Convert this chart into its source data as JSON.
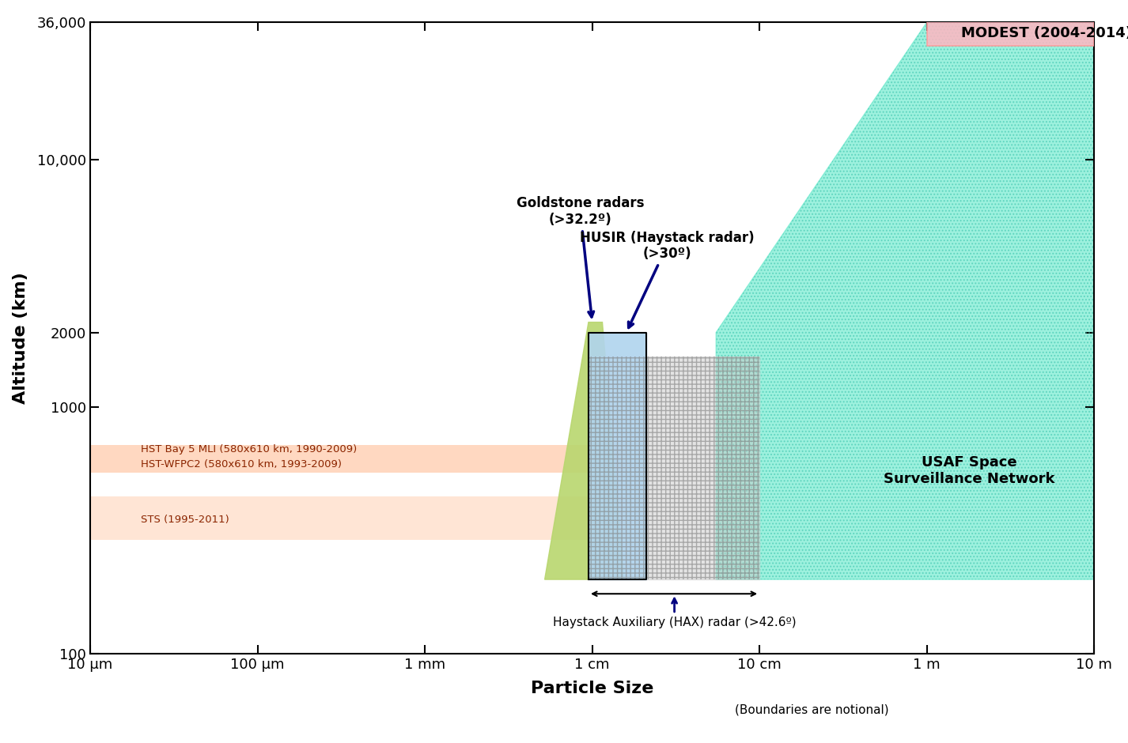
{
  "xlabel": "Particle Size",
  "ylabel": "Altitude (km)",
  "x_ticks_labels": [
    "10 μm",
    "100 μm",
    "1 mm",
    "1 cm",
    "10 cm",
    "1 m",
    "10 m"
  ],
  "x_ticks_pos": [
    1e-05,
    0.0001,
    0.001,
    0.01,
    0.1,
    1.0,
    10.0
  ],
  "y_ticks_labels": [
    "100",
    "1000",
    "2000",
    "10,000",
    "36,000"
  ],
  "y_ticks_pos": [
    100,
    1000,
    2000,
    10000,
    36000
  ],
  "xlim": [
    1e-05,
    10.0
  ],
  "ylim": [
    100,
    36000
  ],
  "modest_color": "#FFB6C1",
  "modest_text": "MODEST (2004-2014)",
  "usaf_color": "#5CE8C8",
  "usaf_alpha": 0.6,
  "usaf_text": "USAF Space\nSurveillance Network",
  "goldstone_color": "#B8D66E",
  "goldstone_alpha": 0.9,
  "husir_color": "#B0D4EE",
  "husir_alpha": 0.9,
  "hax_color": "#C8C8C8",
  "hax_alpha": 0.5,
  "hst_color": "#FFAA77",
  "hst_alpha": 0.45,
  "hst_text1": "HST Bay 5 MLI (580x610 km, 1990-2009)",
  "hst_text2": "HST-WFPC2 (580x610 km, 1993-2009)",
  "hst_text3": "STS (1995-2011)",
  "background_color": "#ffffff"
}
